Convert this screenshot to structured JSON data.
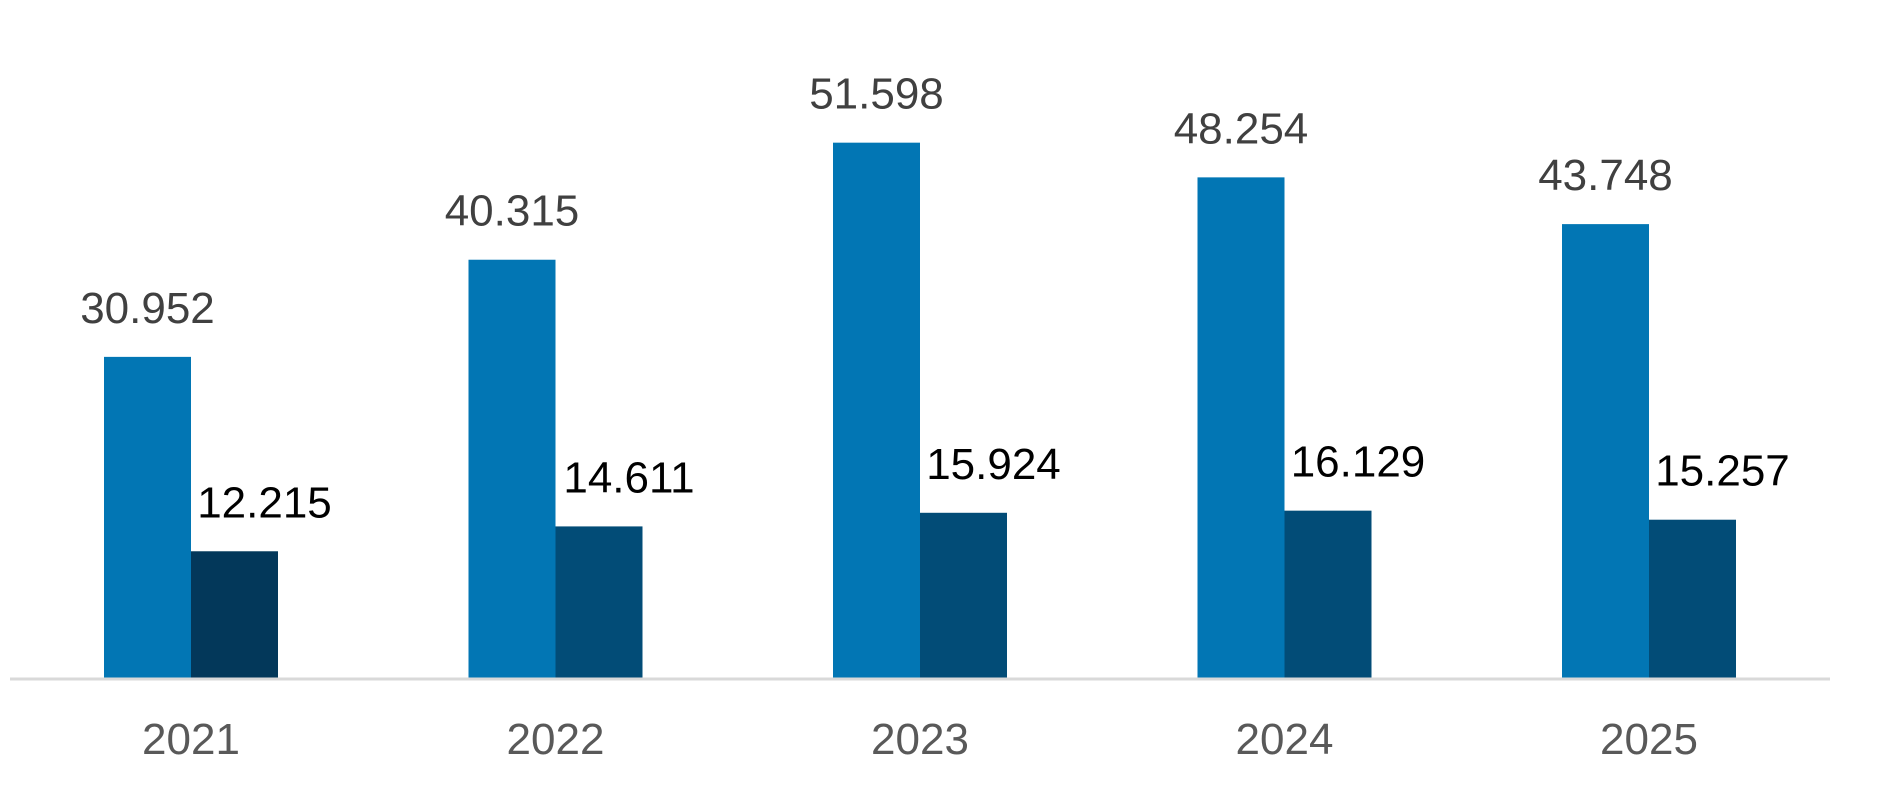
{
  "chart_data": {
    "type": "bar",
    "title": "",
    "xlabel": "",
    "ylabel": "",
    "categories": [
      "2021",
      "2022",
      "2023",
      "2024",
      "2025"
    ],
    "series": [
      {
        "values": [
          30.952,
          40.315,
          51.598,
          48.254,
          43.748
        ],
        "labels": [
          "30.952",
          "40.315",
          "51.598",
          "48.254",
          "43.748"
        ],
        "color": "#0276B4",
        "label_color": "#404040"
      },
      {
        "values": [
          12.215,
          14.611,
          15.924,
          16.129,
          15.257
        ],
        "labels": [
          "12.215",
          "14.611",
          "15.924",
          "16.129",
          "15.257"
        ],
        "colors": [
          "#03385A",
          "#024C77",
          "#024C77",
          "#024C77",
          "#024C77"
        ],
        "label_color": "#000000"
      }
    ],
    "ylim": [
      0,
      60
    ],
    "grid": false,
    "legend": "none",
    "axis_color": "#D9D9D9",
    "tick_label_color": "#595959"
  }
}
